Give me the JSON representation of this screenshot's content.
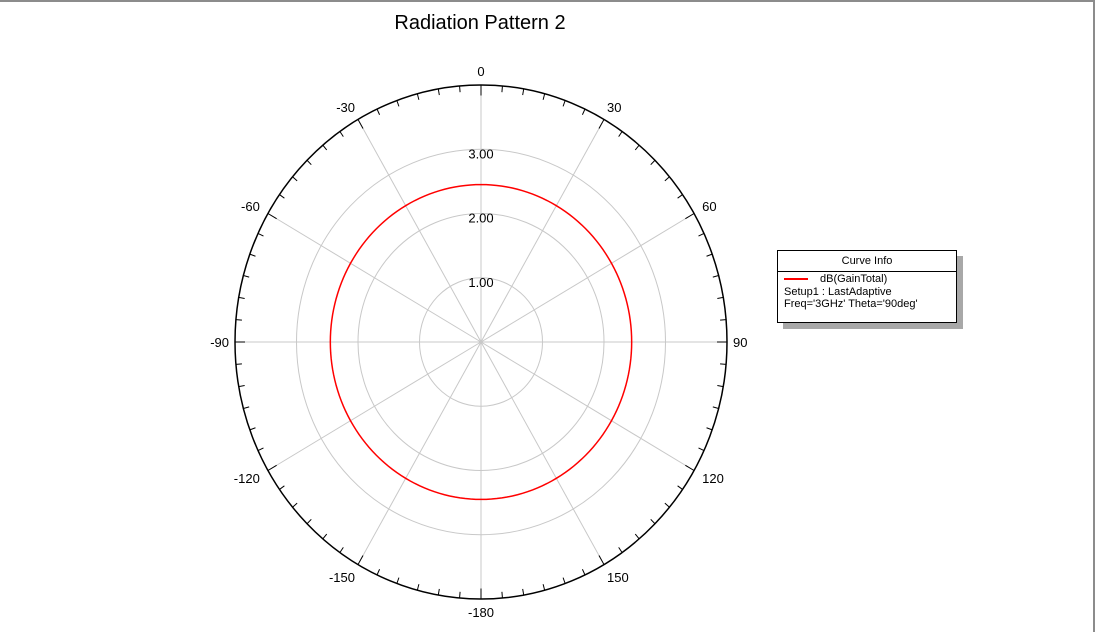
{
  "chart_data": {
    "type": "polar-line",
    "title": "Radiation Pattern 2",
    "radial_ticks": [
      "1.00",
      "2.00",
      "3.00"
    ],
    "radial_range": [
      0,
      4
    ],
    "angle_labels": [
      "0",
      "30",
      "60",
      "90",
      "120",
      "150",
      "-180",
      "-150",
      "-120",
      "-90",
      "-60",
      "-30"
    ],
    "angle_values": [
      0,
      30,
      60,
      90,
      120,
      150,
      180,
      -150,
      -120,
      -90,
      -60,
      -30
    ],
    "angle_zero": "top",
    "angle_direction": "clockwise",
    "grid": true,
    "legend_position": "right",
    "series": [
      {
        "name": "dB(GainTotal)",
        "color": "#ff0000",
        "theta_deg": [
          -180,
          -150,
          -120,
          -90,
          -60,
          -30,
          0,
          30,
          60,
          90,
          120,
          150,
          180
        ],
        "r": [
          2.45,
          2.45,
          2.45,
          2.45,
          2.45,
          2.45,
          2.45,
          2.45,
          2.45,
          2.45,
          2.45,
          2.45,
          2.45
        ]
      }
    ]
  },
  "legend": {
    "title": "Curve Info",
    "series_label": "dB(GainTotal)",
    "line1": "Setup1 : LastAdaptive",
    "line2": "Freq='3GHz' Theta='90deg'"
  },
  "colors": {
    "grid": "#c8c8c8",
    "outer_ring": "#000000",
    "curve": "#ff0000"
  }
}
